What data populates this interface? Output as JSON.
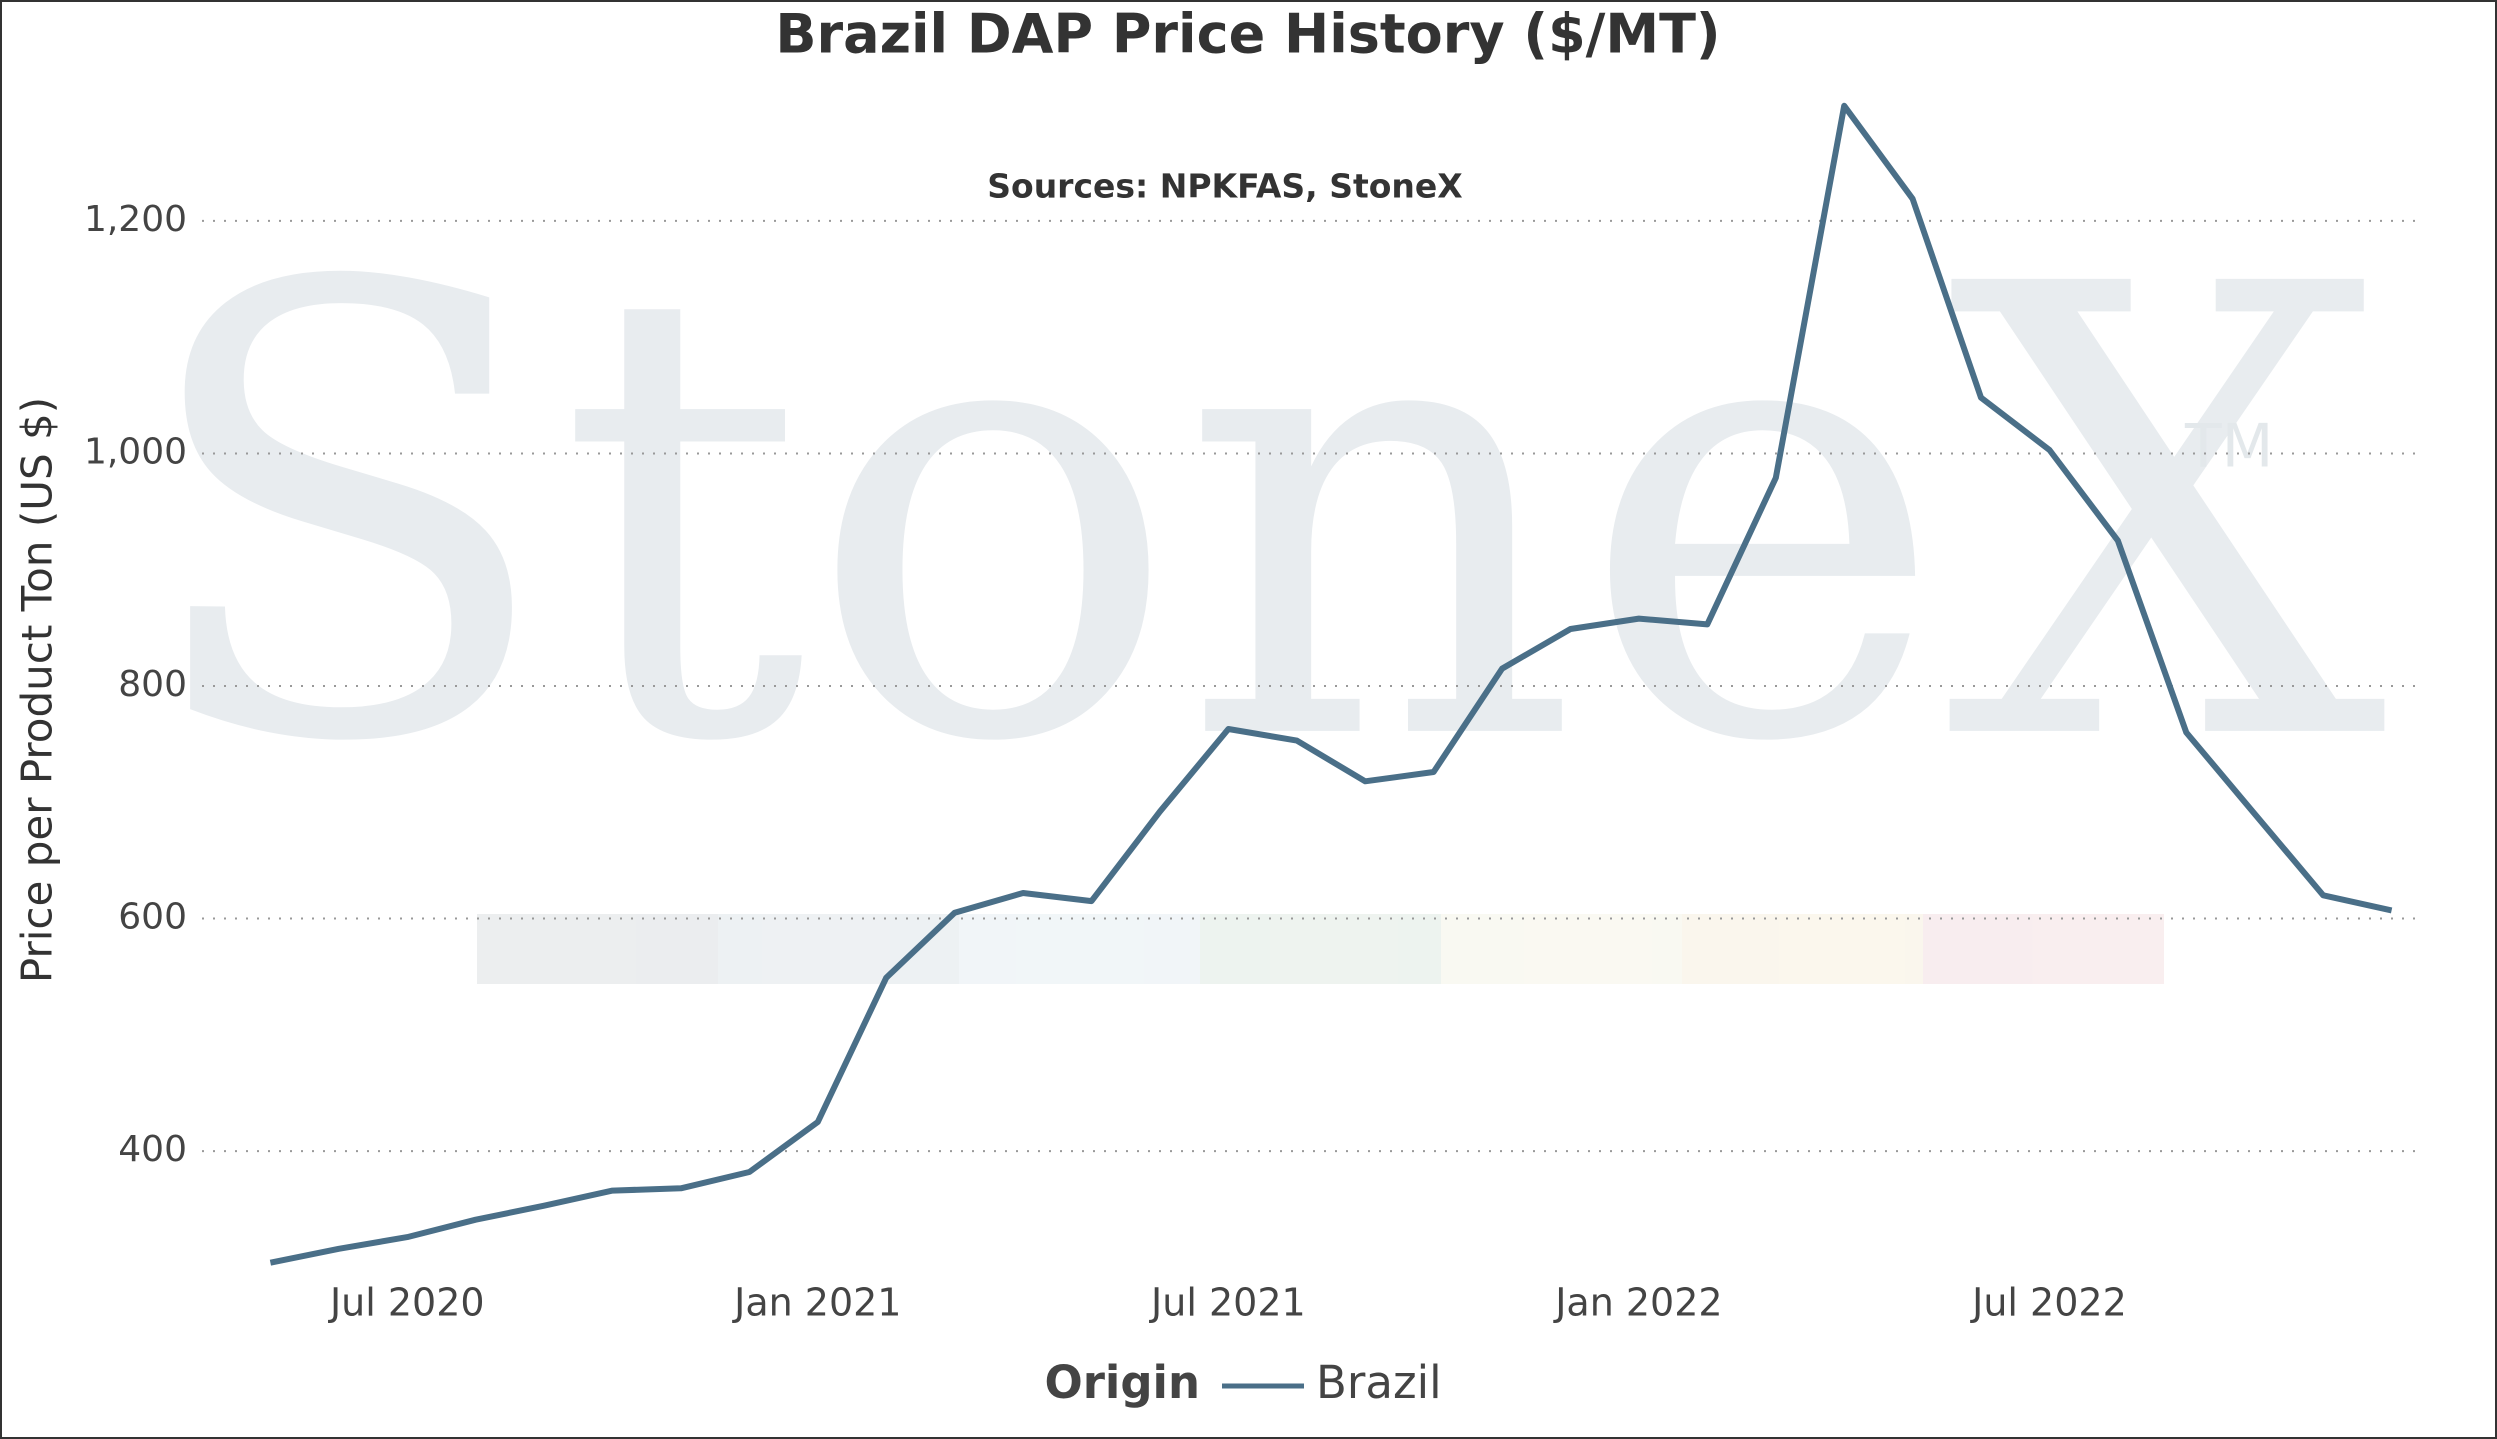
{
  "chart_data": {
    "type": "line",
    "title": "Brazil DAP Price History ($/MT)",
    "subtitle": "Sources: NPKFAS, StoneX",
    "watermark": "StoneX",
    "watermark_mark": "TM",
    "y_label": "Price per Product Ton (US $)",
    "legend_title": "Origin",
    "x": [
      "2020-05",
      "2020-06",
      "2020-07",
      "2020-08",
      "2020-09",
      "2020-10",
      "2020-11",
      "2020-12",
      "2021-01",
      "2021-02",
      "2021-03",
      "2021-04",
      "2021-05",
      "2021-06",
      "2021-07",
      "2021-08",
      "2021-09",
      "2021-10",
      "2021-11",
      "2021-12",
      "2022-01",
      "2022-02",
      "2022-03",
      "2022-04",
      "2022-05",
      "2022-06",
      "2022-07",
      "2022-08",
      "2022-09",
      "2022-10",
      "2022-11",
      "2022-12"
    ],
    "series": [
      {
        "name": "Brazil",
        "color": "#4a6f88",
        "values": [
          304,
          316,
          326,
          341,
          353,
          366,
          368,
          382,
          425,
          549,
          605,
          622,
          615,
          692,
          763,
          753,
          718,
          726,
          815,
          849,
          858,
          853,
          979,
          1299,
          1219,
          1048,
          1003,
          925,
          760,
          690,
          620,
          607
        ]
      }
    ],
    "xlim": [
      "2020-04",
      "2023-01"
    ],
    "xticks": [
      {
        "value": "2020-07",
        "label": "Jul 2020"
      },
      {
        "value": "2021-01",
        "label": "Jan 2021"
      },
      {
        "value": "2021-07",
        "label": "Jul 2021"
      },
      {
        "value": "2022-01",
        "label": "Jan 2022"
      },
      {
        "value": "2022-07",
        "label": "Jul 2022"
      }
    ],
    "ylim": [
      290,
      1310
    ],
    "yticks": [
      400,
      600,
      800,
      {
        "value": 1000,
        "label": "1,000"
      },
      {
        "value": 1200,
        "label": "1,200"
      }
    ],
    "grid": true
  }
}
